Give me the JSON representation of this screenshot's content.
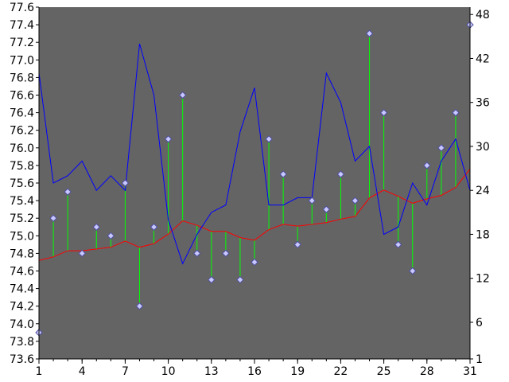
{
  "chart_data": {
    "type": "line",
    "title": "",
    "xlabel": "",
    "ylabel": "",
    "y2label": "",
    "grid": false,
    "legend": "none",
    "x": [
      1,
      2,
      3,
      4,
      5,
      6,
      7,
      8,
      9,
      10,
      11,
      12,
      13,
      14,
      15,
      16,
      17,
      18,
      19,
      20,
      21,
      22,
      23,
      24,
      25,
      26,
      27,
      28,
      29,
      30,
      31
    ],
    "xlim": [
      1,
      31
    ],
    "ylim": [
      73.6,
      77.6
    ],
    "y2lim": [
      1,
      49
    ],
    "x_ticks": [
      1,
      4,
      7,
      10,
      13,
      16,
      19,
      22,
      25,
      28,
      31
    ],
    "y_ticks": [
      "73.6",
      "73.8",
      "74.0",
      "74.2",
      "74.4",
      "74.6",
      "74.8",
      "75.0",
      "75.2",
      "75.4",
      "75.6",
      "75.8",
      "76.0",
      "76.2",
      "76.4",
      "76.6",
      "76.8",
      "77.0",
      "77.2",
      "77.4",
      "77.6"
    ],
    "y2_ticks": [
      "1",
      "6",
      "12",
      "18",
      "24",
      "30",
      "36",
      "42",
      "48"
    ],
    "series": [
      {
        "role": "points",
        "axis": "left",
        "color": "#c8c8ff",
        "marker": "diamond",
        "values": [
          73.9,
          75.2,
          75.5,
          74.8,
          75.1,
          75.0,
          75.6,
          74.2,
          75.1,
          76.1,
          76.6,
          74.8,
          74.5,
          74.8,
          74.5,
          74.7,
          76.1,
          75.7,
          74.9,
          75.4,
          75.3,
          75.7,
          75.4,
          77.3,
          76.4,
          74.9,
          74.6,
          75.8,
          76.0,
          76.4,
          77.4
        ]
      },
      {
        "role": "moving-average",
        "axis": "left",
        "color": "#ff0000",
        "values": [
          74.72,
          74.76,
          74.83,
          74.83,
          74.85,
          74.87,
          74.94,
          74.87,
          74.91,
          75.02,
          75.17,
          75.12,
          75.05,
          75.05,
          74.98,
          74.95,
          75.07,
          75.13,
          75.11,
          75.13,
          75.15,
          75.19,
          75.22,
          75.43,
          75.52,
          75.45,
          75.37,
          75.42,
          75.46,
          75.55,
          75.76
        ]
      },
      {
        "role": "line",
        "axis": "right",
        "color": "#0000ff",
        "values": [
          40,
          25,
          26,
          28,
          24,
          26,
          24,
          44,
          37,
          20,
          14,
          18,
          21,
          22,
          32,
          38,
          22,
          22,
          23,
          23,
          40,
          36,
          28,
          30,
          18,
          19,
          25,
          22,
          28,
          31,
          24
        ]
      }
    ],
    "colors": {
      "plot_background": "#646464",
      "deviation_lines": "#00ff00",
      "axes": "#000000"
    }
  }
}
